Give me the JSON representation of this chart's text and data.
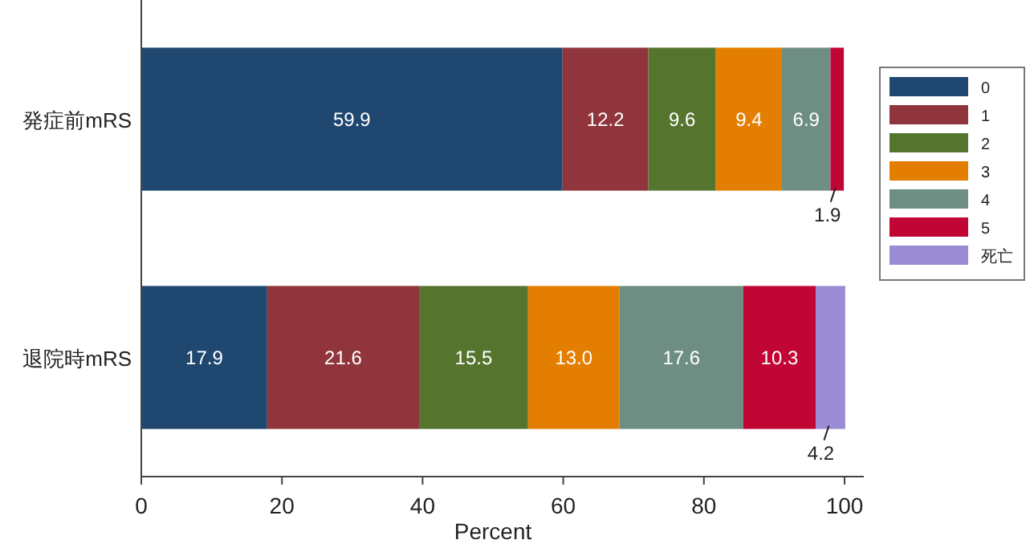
{
  "chart_data": {
    "type": "bar",
    "orientation": "horizontal",
    "stacked": true,
    "xlabel": "Percent",
    "categories": [
      "発症前mRS",
      "退院時mRS"
    ],
    "xlim": [
      0,
      100
    ],
    "xticks": [
      0,
      20,
      40,
      60,
      80,
      100
    ],
    "legend": "right",
    "grid": false,
    "series": [
      {
        "name": "0",
        "color": "#1f4770",
        "values": [
          59.9,
          17.9
        ],
        "value_labels": [
          "59.9",
          "17.9"
        ]
      },
      {
        "name": "1",
        "color": "#90353b",
        "values": [
          12.2,
          21.6
        ],
        "value_labels": [
          "12.2",
          "21.6"
        ]
      },
      {
        "name": "2",
        "color": "#55752f",
        "values": [
          9.6,
          15.5
        ],
        "value_labels": [
          "9.6",
          "15.5"
        ]
      },
      {
        "name": "3",
        "color": "#e37e00",
        "values": [
          9.4,
          13.0
        ],
        "value_labels": [
          "9.4",
          "13.0"
        ]
      },
      {
        "name": "4",
        "color": "#6e8e84",
        "values": [
          6.9,
          17.6
        ],
        "value_labels": [
          "6.9",
          "17.6"
        ]
      },
      {
        "name": "5",
        "color": "#c10534",
        "values": [
          1.9,
          10.3
        ],
        "value_labels": [
          "1.9",
          "10.3"
        ]
      },
      {
        "name": "死亡",
        "color": "#9a8bd4",
        "values": [
          null,
          4.2
        ],
        "value_labels": [
          null,
          "4.2"
        ]
      }
    ]
  }
}
